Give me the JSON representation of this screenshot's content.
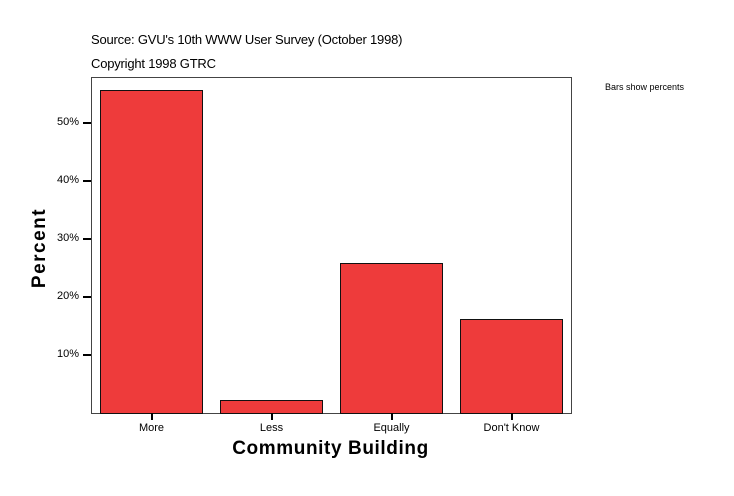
{
  "header": {
    "source": "Source: GVU's 10th WWW User Survey (October 1998)",
    "copyright": "Copyright 1998 GTRC",
    "note": "Bars show percents"
  },
  "colors": {
    "bar_fill": "#EE3B3B",
    "bar_border": "#111111",
    "frame": "#444444",
    "background": "#FFFFFF"
  },
  "chart_data": {
    "type": "bar",
    "title": "",
    "subtitle": "Source: GVU's 10th WWW User Survey (October 1998) / Copyright 1998 GTRC",
    "annotation": "Bars show percents",
    "xlabel": "Community Building",
    "ylabel": "Percent",
    "categories": [
      "More",
      "Less",
      "Equally",
      "Don't Know"
    ],
    "values": [
      55.7,
      2.2,
      25.9,
      16.2
    ],
    "ylim": [
      0,
      57.8
    ],
    "yticks": [
      10,
      20,
      30,
      40,
      50
    ],
    "ytick_labels": [
      "10%",
      "20%",
      "30%",
      "40%",
      "50%"
    ],
    "grid": false,
    "legend": "none"
  }
}
